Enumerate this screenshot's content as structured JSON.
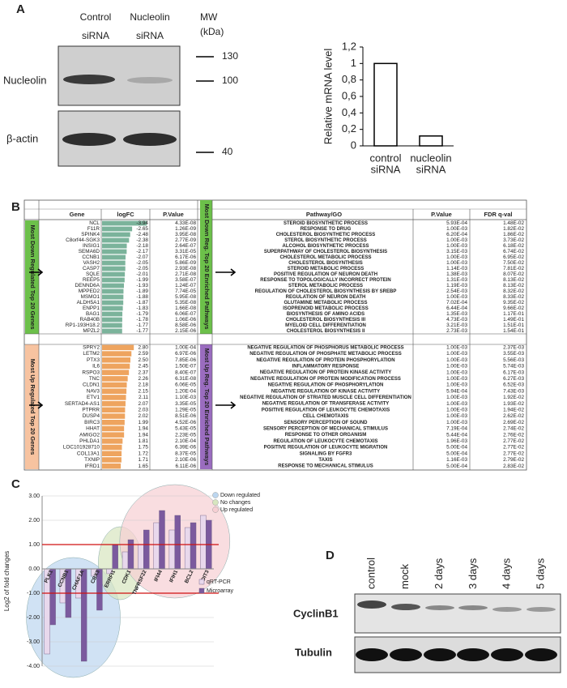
{
  "panel_labels": [
    "A",
    "B",
    "C",
    "D"
  ],
  "blot_a": {
    "lanes": [
      "Control",
      "Nucleolin"
    ],
    "lane_sub": [
      "siRNA",
      "siRNA"
    ],
    "mw_title": "MW",
    "mw_unit": "(kDa)",
    "mw_markers": [
      "130",
      "100",
      "40"
    ],
    "rows": [
      "Nucleolin",
      "β-actin"
    ]
  },
  "chart_data": [
    {
      "type": "bar",
      "ylabel": "Relative mRNA level",
      "categories": [
        [
          "control",
          "siRNA"
        ],
        [
          "nucleolin",
          "siRNA"
        ]
      ],
      "values": [
        1,
        0.12
      ],
      "color": "#ffffff",
      "ylim": [
        0,
        1.2
      ],
      "yticks": [
        0,
        {
          "value": 0.2,
          "label": "0,2"
        },
        {
          "value": 0.4,
          "label": "0,4"
        },
        {
          "value": 0.6,
          "label": "0,6"
        },
        {
          "value": 0.8,
          "label": "0,8"
        },
        1,
        {
          "value": 1.2,
          "label": "1,2"
        }
      ]
    },
    {
      "type": "grouped-bar",
      "ylabel": "Log2 of fold changes",
      "categories": [
        "PLK1",
        "CCNB1",
        "CHAF1A",
        "CBX3",
        "ERRFI1",
        "CDK1",
        "TNFRSF22",
        "IFI44",
        "IFIH1",
        "BCL2",
        "DDIT3"
      ],
      "series": [
        {
          "name": "qRT-PCR",
          "color": "#e8d8ec",
          "values": [
            -3.5,
            -1.4,
            -1.2,
            -0.3,
            -0.2,
            0.7,
            1.0,
            1.9,
            1.6,
            1.7,
            2.2
          ]
        },
        {
          "name": "Microarray",
          "color": "#7b5a9e",
          "values": [
            -2.3,
            -2.0,
            -3.8,
            -1.7,
            1.0,
            1.2,
            1.6,
            2.4,
            2.2,
            1.9,
            2.0
          ]
        }
      ],
      "ylim": [
        -4,
        3
      ],
      "yticks": [
        {
          "value": -4,
          "label": "-4.00"
        },
        {
          "value": -3,
          "label": "-3.00"
        },
        {
          "value": -2,
          "label": "-2.00"
        },
        {
          "value": -1,
          "label": "-1.00"
        },
        {
          "value": 0,
          "label": "0.00"
        },
        {
          "value": 1,
          "label": "1.00"
        },
        {
          "value": 2,
          "label": "2.00"
        },
        {
          "value": 3,
          "label": "3.00"
        }
      ],
      "reference_lines": [
        1,
        -1
      ],
      "reference_color": "#d01010",
      "grid": true,
      "groups": [
        {
          "name": "Down regulated",
          "color": "#bcd6ef"
        },
        {
          "name": "No changes",
          "color": "#d7e6bf"
        },
        {
          "name": "Up regulated",
          "color": "#f6cfd3"
        }
      ]
    }
  ],
  "table_b": {
    "gene_header": [
      "Gene",
      "logFC",
      "P.Value"
    ],
    "path_header": [
      "Pathway/GO",
      "P.Value",
      "FDR q-val"
    ],
    "down_title": "Most Down Regulated Top 20 Genes",
    "up_title": "Most Up Regulated Top 20 Genes",
    "down_path_title": "Most Down Reg. Top 20 Enriched Pathways",
    "up_path_title": "Most Up Reg. Top 20 Enriched Pathways",
    "down_genes": [
      [
        "NCL",
        "-3.94",
        "4.33E-08"
      ],
      [
        "F11R",
        "-2.65",
        "1.26E-09"
      ],
      [
        "SPINK4",
        "-2.48",
        "3.95E-08"
      ],
      [
        "C8orf44-SGK3",
        "-2.38",
        "2.77E-09"
      ],
      [
        "INSIG1",
        "-2.18",
        "2.64E-07"
      ],
      [
        "SEMA6D",
        "-2.17",
        "3.31E-05"
      ],
      [
        "CCNB1",
        "-2.07",
        "6.17E-06"
      ],
      [
        "VASH2",
        "-2.05",
        "5.86E-09"
      ],
      [
        "CASP7",
        "-2.05",
        "2.93E-08"
      ],
      [
        "SQLE",
        "-2.01",
        "2.71E-08"
      ],
      [
        "REEP5",
        "-1.99",
        "3.58E-07"
      ],
      [
        "DENND6A",
        "-1.93",
        "1.24E-07"
      ],
      [
        "MPPED2",
        "-1.89",
        "7.74E-05"
      ],
      [
        "MSMO1",
        "-1.88",
        "5.95E-08"
      ],
      [
        "ALDH5A1",
        "-1.87",
        "5.35E-08"
      ],
      [
        "ENPP1",
        "-1.83",
        "1.66E-08"
      ],
      [
        "BAG1",
        "-1.79",
        "6.06E-07"
      ],
      [
        "RAB40B",
        "-1.78",
        "1.06E-06"
      ],
      [
        "RP1-193H18.2",
        "-1.77",
        "8.58E-06"
      ],
      [
        "MPZL2",
        "-1.77",
        "2.15E-06"
      ]
    ],
    "up_genes": [
      [
        "SPRY2",
        "2.80",
        "1.00E-04"
      ],
      [
        "LETM2",
        "2.59",
        "6.97E-06"
      ],
      [
        "PTX3",
        "2.50",
        "7.85E-06"
      ],
      [
        "IL6",
        "2.45",
        "1.50E-07"
      ],
      [
        "RSPO3",
        "2.37",
        "8.40E-07"
      ],
      [
        "TNC",
        "2.26",
        "6.31E-08"
      ],
      [
        "CLDN1",
        "2.18",
        "6.06E-05"
      ],
      [
        "NAV3",
        "2.15",
        "1.20E-04"
      ],
      [
        "ETV1",
        "2.11",
        "1.10E-03"
      ],
      [
        "SERTAD4-AS1",
        "2.07",
        "3.35E-05"
      ],
      [
        "PTPRR",
        "2.03",
        "1.29E-05"
      ],
      [
        "DUSP4",
        "2.02",
        "8.51E-06"
      ],
      [
        "BIRC3",
        "1.99",
        "4.52E-06"
      ],
      [
        "HHAT",
        "1.94",
        "5.43E-05"
      ],
      [
        "AMIGO2",
        "1.94",
        "2.23E-05"
      ],
      [
        "PHLDA1",
        "1.81",
        "2.10E-04"
      ],
      [
        "LOC101928710",
        "1.75",
        "6.39E-06"
      ],
      [
        "COL13A1",
        "1.72",
        "8.37E-05"
      ],
      [
        "TXNIP",
        "1.71",
        "2.10E-06"
      ],
      [
        "IFRD1",
        "1.65",
        "6.11E-06"
      ]
    ],
    "down_paths": [
      [
        "STEROID BIOSYNTHETIC PROCESS",
        "5.93E-04",
        "1.48E-02"
      ],
      [
        "RESPONSE TO DRUG",
        "1.00E-03",
        "1.82E-02"
      ],
      [
        "CHOLESTEROL BIOSYNTHETIC PROCESS",
        "6.20E-04",
        "1.86E-02"
      ],
      [
        "STEROL BIOSYNTHETIC PROCESS",
        "1.00E-03",
        "3.73E-02"
      ],
      [
        "ALCOHOL BIOSYNTHETIC PROCESS",
        "1.00E-03",
        "6.18E-02"
      ],
      [
        "SUPERPATHWAY OF CHOLESTEROL BIOSYNTHESIS",
        "3.15E-03",
        "6.74E-02"
      ],
      [
        "CHOLESTEROL METABOLIC PROCESS",
        "1.00E-03",
        "6.95E-02"
      ],
      [
        "CHOLESTEROL BIOSYNTHESIS",
        "1.00E-03",
        "7.50E-02"
      ],
      [
        "STEROID METABOLIC PROCESS",
        "1.14E-03",
        "7.81E-02"
      ],
      [
        "POSITIVE REGULATION OF NEURON DEATH",
        "1.38E-03",
        "8.07E-02"
      ],
      [
        "RESPONSE TO TOPOLOGICALLY INCORRECT PROTEIN",
        "1.31E-03",
        "8.13E-02"
      ],
      [
        "STEROL METABOLIC PROCESS",
        "1.19E-03",
        "8.13E-02"
      ],
      [
        "REGULATION OF CHOLESTEROL BIOSYNTHESIS BY SREBP",
        "2.54E-03",
        "8.32E-02"
      ],
      [
        "REGULATION OF NEURON DEATH",
        "1.00E-03",
        "8.33E-02"
      ],
      [
        "GLUTAMINE METABOLIC PROCESS",
        "7.02E-04",
        "9.35E-02"
      ],
      [
        "ISOPRENOID METABOLIC PROCESS",
        "6.44E-04",
        "9.66E-02"
      ],
      [
        "BIOSYNTHESIS OF AMINO ACIDS",
        "1.35E-03",
        "1.17E-01"
      ],
      [
        "CHOLESTEROL BIOSYNTHESIS III",
        "4.73E-03",
        "1.49E-01"
      ],
      [
        "MYELOID CELL DIFFERENTIATION",
        "3.21E-03",
        "1.51E-01"
      ],
      [
        "CHOLESTEROL BIOSYNTHESIS II",
        "2.73E-03",
        "1.54E-01"
      ]
    ],
    "up_paths": [
      [
        "NEGATIVE REGULATION OF PHOSPHORUS METABOLIC PROCESS",
        "1.00E-03",
        "2.37E-03"
      ],
      [
        "NEGATIVE REGULATION OF PHOSPHATE METABOLIC PROCESS",
        "1.00E-03",
        "3.55E-03"
      ],
      [
        "NEGATIVE REGULATION OF PROTEIN PHOSPHORYLATION",
        "1.00E-03",
        "5.56E-03"
      ],
      [
        "INFLAMMATORY RESPONSE",
        "1.00E-03",
        "5.74E-03"
      ],
      [
        "NEGATIVE REGULATION OF PROTEIN KINASE ACTIVITY",
        "1.00E-03",
        "6.17E-03"
      ],
      [
        "NEGATIVE REGULATION OF PROTEIN MODIFICATION PROCESS",
        "1.00E-03",
        "6.27E-03"
      ],
      [
        "NEGATIVE REGULATION OF PHOSPHORYLATION",
        "1.00E-03",
        "6.52E-03"
      ],
      [
        "NEGATIVE REGULATION OF KINASE ACTIVITY",
        "5.94E-04",
        "7.43E-03"
      ],
      [
        "NEGATIVE REGULATION OF STRIATED MUSCLE CELL DIFFERENTIATION",
        "1.00E-03",
        "1.92E-02"
      ],
      [
        "NEGATIVE REGULATION OF TRANSFERASE ACTIVITY",
        "1.00E-03",
        "1.93E-02"
      ],
      [
        "POSITIVE REGULATION OF LEUKOCYTE CHEMOTAXIS",
        "1.00E-03",
        "1.94E-02"
      ],
      [
        "CELL CHEMOTAXIS",
        "1.00E-03",
        "2.62E-02"
      ],
      [
        "SENSORY PERCEPTION OF SOUND",
        "1.00E-03",
        "2.69E-02"
      ],
      [
        "SENSORY PERCEPTION OF MECHANICAL STIMULUS",
        "7.19E-04",
        "2.74E-02"
      ],
      [
        "RESPONSE TO OTHER ORGANISM",
        "5.44E-04",
        "2.76E-02"
      ],
      [
        "REGULATION OF LEUKOCYTE CHEMOTAXIS",
        "1.96E-03",
        "2.77E-02"
      ],
      [
        "POSITIVE REGULATION OF LEUKOCYTE MIGRATION",
        "5.00E-04",
        "2.77E-02"
      ],
      [
        "SIGNALING BY FGFR3",
        "5.00E-04",
        "2.77E-02"
      ],
      [
        "TAXIS",
        "1.16E-03",
        "2.79E-02"
      ],
      [
        "RESPONSE TO MECHANICAL STIMULUS",
        "5.00E-04",
        "2.83E-02"
      ]
    ]
  },
  "blot_d": {
    "lanes": [
      "control",
      "mock",
      "2 days",
      "3 days",
      "4 days",
      "5 days"
    ],
    "rows": [
      "CyclinB1",
      "Tubulin"
    ]
  }
}
